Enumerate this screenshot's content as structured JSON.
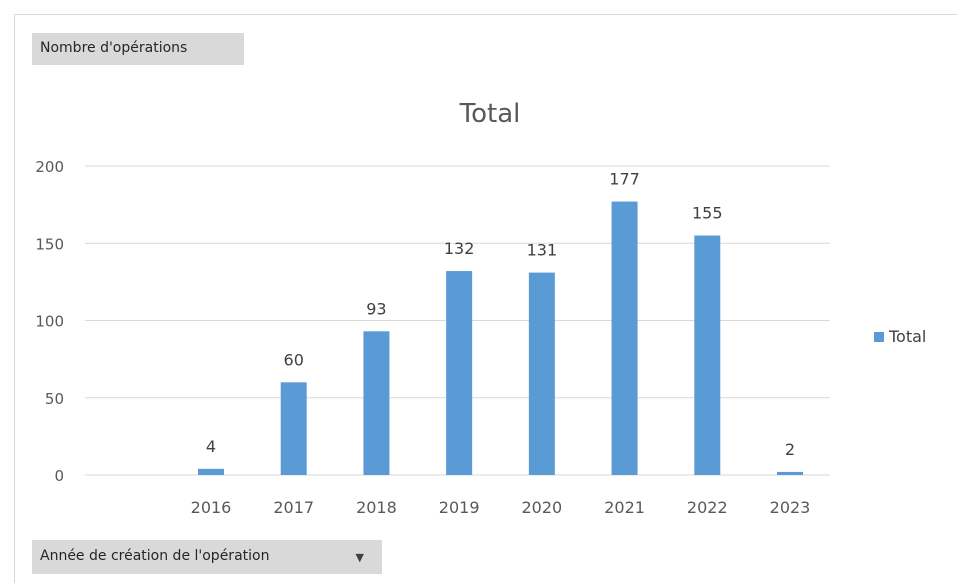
{
  "pivot": {
    "values_field_label": "Nombre d'opérations",
    "axis_field_label": "Année de création de l'opération"
  },
  "chart_data": {
    "type": "bar",
    "title": "Total",
    "categories": [
      "2016",
      "2017",
      "2018",
      "2019",
      "2020",
      "2021",
      "2022",
      "2023"
    ],
    "series": [
      {
        "name": "Total",
        "values": [
          4,
          60,
          93,
          132,
          131,
          177,
          155,
          2
        ],
        "color": "#5b9bd5"
      }
    ],
    "ylim": [
      0,
      200
    ],
    "yticks": [
      0,
      50,
      100,
      150,
      200
    ],
    "xlabel": "",
    "ylabel": "",
    "grid": true,
    "legend_position": "right",
    "data_labels": true
  }
}
